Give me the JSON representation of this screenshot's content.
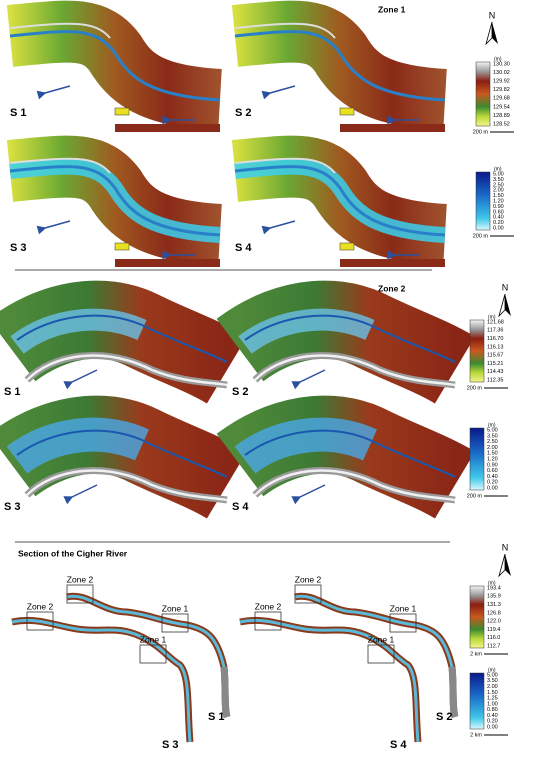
{
  "zones": [
    {
      "title": "Zone 1",
      "north": "N",
      "maps": [
        {
          "label": "S 1"
        },
        {
          "label": "S 2"
        },
        {
          "label": "S 3"
        },
        {
          "label": "S 4"
        }
      ],
      "elevation_legend": {
        "unit": "(m)",
        "labels": [
          "130.30",
          "130.02",
          "129.92",
          "129.82",
          "129.68",
          "129.54",
          "128.89",
          "128.52"
        ],
        "scale": "200 m"
      },
      "depth_legend": {
        "unit": "(m)",
        "labels": [
          "5.00",
          "3.50",
          "2.50",
          "2.00",
          "1.50",
          "1.20",
          "0.90",
          "0.60",
          "0.40",
          "0.20",
          "0.00"
        ],
        "scale": "200 m"
      }
    },
    {
      "title": "Zone 2",
      "north": "N",
      "maps": [
        {
          "label": "S 1"
        },
        {
          "label": "S 2"
        },
        {
          "label": "S 3"
        },
        {
          "label": "S 4"
        }
      ],
      "elevation_legend": {
        "unit": "(m)",
        "labels": [
          "121.68",
          "117.36",
          "116.70",
          "116.13",
          "115.67",
          "115.21",
          "114.43",
          "112.35"
        ],
        "scale": "200 m"
      },
      "depth_legend": {
        "unit": "(m)",
        "labels": [
          "5.00",
          "3.50",
          "2.50",
          "2.00",
          "1.50",
          "1.20",
          "0.90",
          "0.60",
          "0.40",
          "0.20",
          "0.00"
        ],
        "scale": "200 m"
      }
    },
    {
      "title": "Section of the Cigher River",
      "north": "N",
      "maps": [
        {
          "labels": [
            "S 1",
            "S 3"
          ],
          "boxes": [
            "Zone 2",
            "Zone 2",
            "Zone 1",
            "Zone 1"
          ]
        },
        {
          "labels": [
            "S 2",
            "S 4"
          ],
          "boxes": [
            "Zone 2",
            "Zone 2",
            "Zone 1",
            "Zone 1"
          ]
        }
      ],
      "elevation_legend": {
        "unit": "(m)",
        "labels": [
          "193.4",
          "135.9",
          "131.3",
          "126.8",
          "122.0",
          "119.4",
          "116.0",
          "112.7"
        ],
        "scale": "2 km"
      },
      "depth_legend": {
        "unit": "(m)",
        "labels": [
          "5.00",
          "3.50",
          "2.00",
          "1.50",
          "1.25",
          "1.00",
          "0.80",
          "0.40",
          "0.20",
          "0.00"
        ],
        "scale": "2 km"
      }
    }
  ]
}
